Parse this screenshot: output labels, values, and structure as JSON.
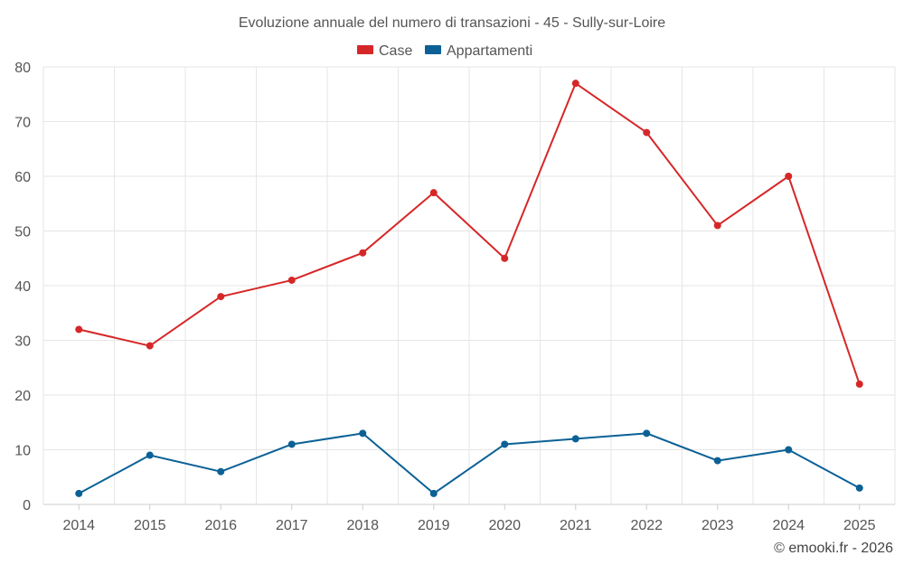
{
  "chart_data": {
    "type": "line",
    "title": "Evoluzione annuale del numero di transazioni - 45 - Sully-sur-Loire",
    "categories": [
      "2014",
      "2015",
      "2016",
      "2017",
      "2018",
      "2019",
      "2020",
      "2021",
      "2022",
      "2023",
      "2024",
      "2025"
    ],
    "series": [
      {
        "name": "Case",
        "color": "#d62728",
        "values": [
          32,
          29,
          38,
          41,
          46,
          57,
          45,
          77,
          68,
          51,
          60,
          22
        ]
      },
      {
        "name": "Appartamenti",
        "color": "#0b6196",
        "values": [
          2,
          9,
          6,
          11,
          13,
          2,
          11,
          12,
          13,
          8,
          10,
          3
        ]
      }
    ],
    "xlabel": "",
    "ylabel": "",
    "ylim": [
      0,
      80
    ],
    "yticks": [
      "0",
      "10",
      "20",
      "30",
      "40",
      "50",
      "60",
      "70",
      "80"
    ],
    "grid": true,
    "legend": "top-center"
  },
  "credit": "© emooki.fr - 2026"
}
